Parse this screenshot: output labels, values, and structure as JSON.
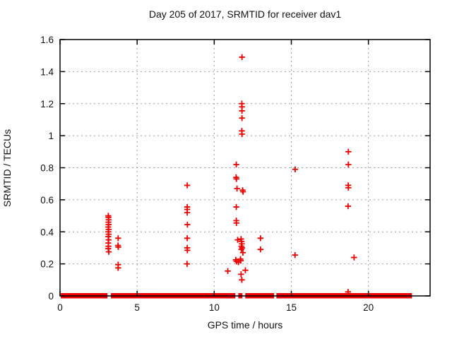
{
  "chart": {
    "title": "Day 205 of 2017, SRMTID for receiver dav1",
    "xlabel": "GPS time / hours",
    "ylabel": "SRMTID / TECUs"
  },
  "colors": {
    "marker": "#ee0000",
    "grid": "#9e9e9e",
    "border": "#000000",
    "text": "#111111",
    "background": "#ffffff"
  },
  "chart_data": {
    "type": "scatter",
    "marker": "plus",
    "title": "Day 205 of 2017, SRMTID for receiver dav1",
    "xlabel": "GPS time / hours",
    "ylabel": "SRMTID / TECUs",
    "xlim": [
      0,
      24
    ],
    "ylim": [
      0,
      1.6
    ],
    "xticks": [
      0,
      5,
      10,
      15,
      20
    ],
    "xtick_labels": [
      "0",
      "5",
      "10",
      "15",
      "20"
    ],
    "yticks": [
      0,
      0.2,
      0.4,
      0.6,
      0.8,
      1.0,
      1.2,
      1.4,
      1.6
    ],
    "ytick_labels": [
      "0",
      "0.2",
      "0.4",
      "0.6",
      "0.8",
      "1",
      "1.2",
      "1.4",
      "1.6"
    ],
    "grid": true,
    "legend": "none",
    "points": [
      [
        3.13,
        0.5
      ],
      [
        3.14,
        0.49
      ],
      [
        3.15,
        0.475
      ],
      [
        3.14,
        0.46
      ],
      [
        3.15,
        0.445
      ],
      [
        3.13,
        0.43
      ],
      [
        3.15,
        0.415
      ],
      [
        3.13,
        0.4
      ],
      [
        3.15,
        0.385
      ],
      [
        3.13,
        0.37
      ],
      [
        3.15,
        0.35
      ],
      [
        3.13,
        0.33
      ],
      [
        3.14,
        0.31
      ],
      [
        3.13,
        0.295
      ],
      [
        3.16,
        0.275
      ],
      [
        3.77,
        0.36
      ],
      [
        3.76,
        0.315
      ],
      [
        3.78,
        0.305
      ],
      [
        3.77,
        0.195
      ],
      [
        3.77,
        0.175
      ],
      [
        8.25,
        0.69
      ],
      [
        8.25,
        0.555
      ],
      [
        8.25,
        0.54
      ],
      [
        8.25,
        0.52
      ],
      [
        8.26,
        0.445
      ],
      [
        8.25,
        0.36
      ],
      [
        8.25,
        0.3
      ],
      [
        8.26,
        0.285
      ],
      [
        8.24,
        0.2
      ],
      [
        10.88,
        0.155
      ],
      [
        11.43,
        0.82
      ],
      [
        11.42,
        0.74
      ],
      [
        11.44,
        0.73
      ],
      [
        11.48,
        0.67
      ],
      [
        11.43,
        0.555
      ],
      [
        11.43,
        0.47
      ],
      [
        11.44,
        0.455
      ],
      [
        11.4,
        0.225
      ],
      [
        11.44,
        0.215
      ],
      [
        11.8,
        1.49
      ],
      [
        11.79,
        1.2
      ],
      [
        11.8,
        1.18
      ],
      [
        11.8,
        1.155
      ],
      [
        11.8,
        1.11
      ],
      [
        11.79,
        1.03
      ],
      [
        11.8,
        1.01
      ],
      [
        11.84,
        0.66
      ],
      [
        11.87,
        0.65
      ],
      [
        11.52,
        0.35
      ],
      [
        11.74,
        0.355
      ],
      [
        11.77,
        0.34
      ],
      [
        11.79,
        0.325
      ],
      [
        11.76,
        0.31
      ],
      [
        11.81,
        0.3
      ],
      [
        11.76,
        0.29
      ],
      [
        11.86,
        0.27
      ],
      [
        11.7,
        0.23
      ],
      [
        11.72,
        0.22
      ],
      [
        11.57,
        0.21
      ],
      [
        12.02,
        0.16
      ],
      [
        11.74,
        0.135
      ],
      [
        11.79,
        0.1
      ],
      [
        13.0,
        0.36
      ],
      [
        13.0,
        0.29
      ],
      [
        15.25,
        0.79
      ],
      [
        15.24,
        0.255
      ],
      [
        18.7,
        0.9
      ],
      [
        18.7,
        0.82
      ],
      [
        18.69,
        0.69
      ],
      [
        18.7,
        0.675
      ],
      [
        18.68,
        0.56
      ],
      [
        18.68,
        0.025
      ],
      [
        19.07,
        0.24
      ]
    ],
    "zero_band_segments": [
      [
        0.05,
        3.08
      ],
      [
        3.3,
        11.37
      ],
      [
        11.56,
        11.83
      ],
      [
        12.01,
        13.88
      ],
      [
        14.03,
        22.82
      ]
    ],
    "zero_band_note": "dense contiguous run of near-zero SRMTID values plotted along y=0"
  }
}
